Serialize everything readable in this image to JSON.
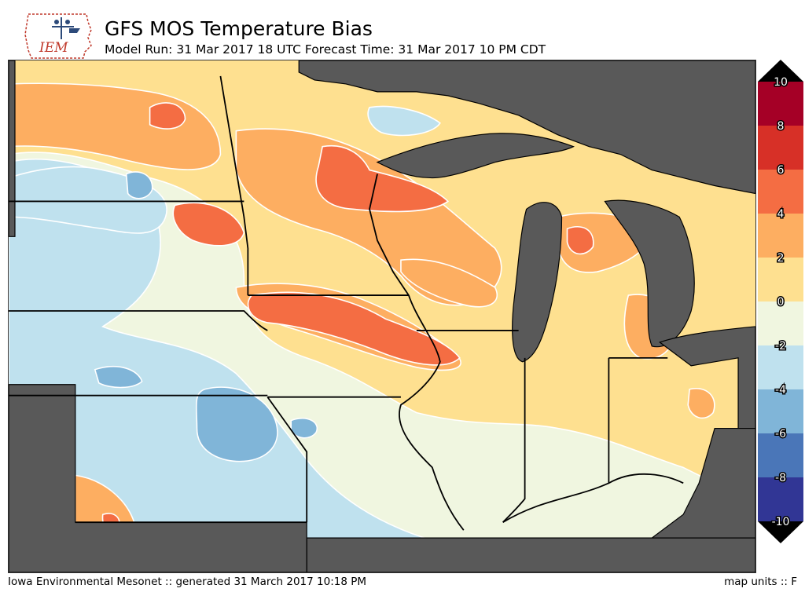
{
  "header": {
    "title": "GFS MOS Temperature Bias",
    "subtitle": "Model Run: 31 Mar 2017 18 UTC Forecast Time: 31 Mar 2017 10 PM CDT",
    "logo_text": "IEM"
  },
  "footer": {
    "left": "Iowa Environmental Mesonet :: generated 31 March 2017 10:18 PM",
    "right": "map units :: F"
  },
  "colorbar": {
    "labels": [
      "10",
      "8",
      "6",
      "4",
      "2",
      "0",
      "-2",
      "-4",
      "-6",
      "-8",
      "-10"
    ],
    "colors": [
      "#a50026",
      "#d73027",
      "#f46d43",
      "#fdae61",
      "#fee090",
      "#f0f6e0",
      "#bfe1ee",
      "#80b5d8",
      "#4a76b8",
      "#313695"
    ],
    "over_color": "#000000",
    "under_color": "#000000"
  },
  "map": {
    "land_mask_color": "#595959",
    "contour_line_color": "#ffffff",
    "boundary_color": "#000000"
  }
}
